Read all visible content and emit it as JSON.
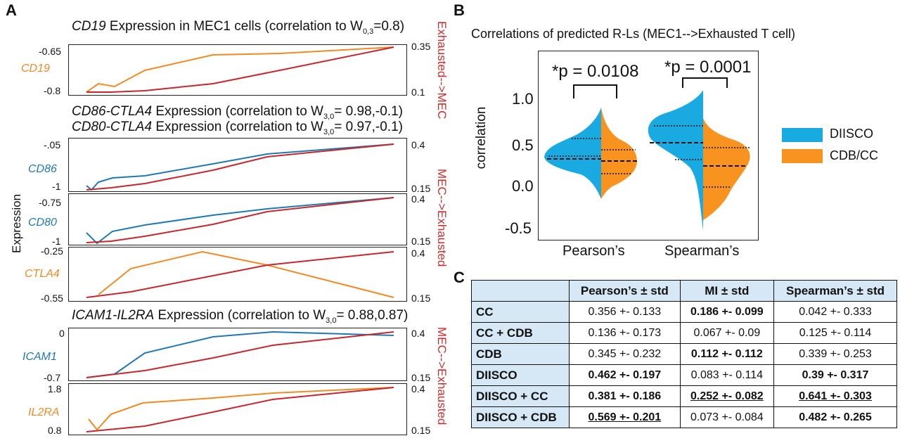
{
  "colors": {
    "orange": "#f08a24",
    "red": "#c8262c",
    "blue": "#1f78b4",
    "diisco": "#1aaae2",
    "cdbcc": "#f7931e"
  },
  "panelA": {
    "letter": "A",
    "ylabel": "Expression",
    "title1": {
      "gene": "CD19",
      "text": "Expression in MEC1 cells (correlation to W",
      "sub": "0,3",
      "tail": "=0.8)"
    },
    "title2": {
      "gene": "CD86-CTLA4",
      "text": "Expression (correlation to W",
      "sub": "3,0",
      "tail": "= 0.98,-0.1)"
    },
    "title3": {
      "gene": "CD80-CTLA4",
      "text": "Expression (correlation to W",
      "sub": "3,0",
      "tail": "= 0.97,-0.1)"
    },
    "title4": {
      "gene": "ICAM1-IL2RA",
      "text": "Expression (correlation to W",
      "sub": "3,0",
      "tail": "= 0.88,0.87)"
    },
    "right_label1": "Exhausted-->MEC",
    "right_label2": "MEC-->Exhausted",
    "right_label3": "MEC-->Exhausted",
    "plots": [
      {
        "gene": "CD19",
        "ytop": "-0.65",
        "ybot": "-0.8",
        "rtop": "0.35",
        "rbot": "0.1"
      },
      {
        "gene": "CD86",
        "ytop": "-.05",
        "ybot": "-1",
        "rtop": "0.4",
        "rbot": "0.15"
      },
      {
        "gene": "CD80",
        "ytop": "-0.75",
        "ybot": "-1",
        "rtop": "0.4",
        "rbot": "0.15"
      },
      {
        "gene": "CTLA4",
        "ytop": "-0.25",
        "ybot": "-0.55",
        "rtop": "0.4",
        "rbot": "0.15"
      },
      {
        "gene": "ICAM1",
        "ytop": "0",
        "ybot": "-0.7",
        "rtop": "0.4",
        "rbot": "0.15"
      },
      {
        "gene": "IL2RA",
        "ytop": "1.8",
        "ybot": "0.8",
        "rtop": "0.4",
        "rbot": "0.15"
      }
    ]
  },
  "panelB": {
    "letter": "B",
    "title": "Correlations of predicted R-Ls (MEC1-->Exhausted T cell)",
    "ylabel": "correlation",
    "yticks": [
      "1.0",
      "0.5",
      "0.0",
      "-0.5"
    ],
    "xticks": [
      "Pearson’s",
      "Spearman’s"
    ],
    "pval1": "*p = 0.0108",
    "pval2": "*p = 0.0001",
    "legend": [
      "DIISCO",
      "CDB/CC"
    ]
  },
  "panelC": {
    "letter": "C",
    "headers": [
      "",
      "Pearson’s ± std",
      "MI ± std",
      "Spearman’s ± std"
    ],
    "rows": [
      {
        "name": "CC",
        "p": "0.356 +- 0.133",
        "mi": "0.186 +- 0.099",
        "s": "0.042 +- 0.333"
      },
      {
        "name": "CC + CDB",
        "p": "0.136 +- 0.173",
        "mi": "0.067 +- 0.09",
        "s": "0.125 +- 0.114"
      },
      {
        "name": "CDB",
        "p": "0.345 +- 0.232",
        "mi": "0.112 +- 0.112",
        "s": "0.339 +- 0.253"
      },
      {
        "name": "DIISCO",
        "p": "0.462 +- 0.197",
        "mi": "0.083 +- 0.114",
        "s": "0.39 +- 0.317"
      },
      {
        "name": "DIISCO + CC",
        "p": "0.381 +- 0.186",
        "mi": "0.252 +- 0.082",
        "s": "0.641 +- 0.303"
      },
      {
        "name": "DIISCO + CDB",
        "p": "0.569 +- 0.201",
        "mi": "0.073 +- 0.084",
        "s": "0.482 +- 0.265"
      }
    ]
  }
}
